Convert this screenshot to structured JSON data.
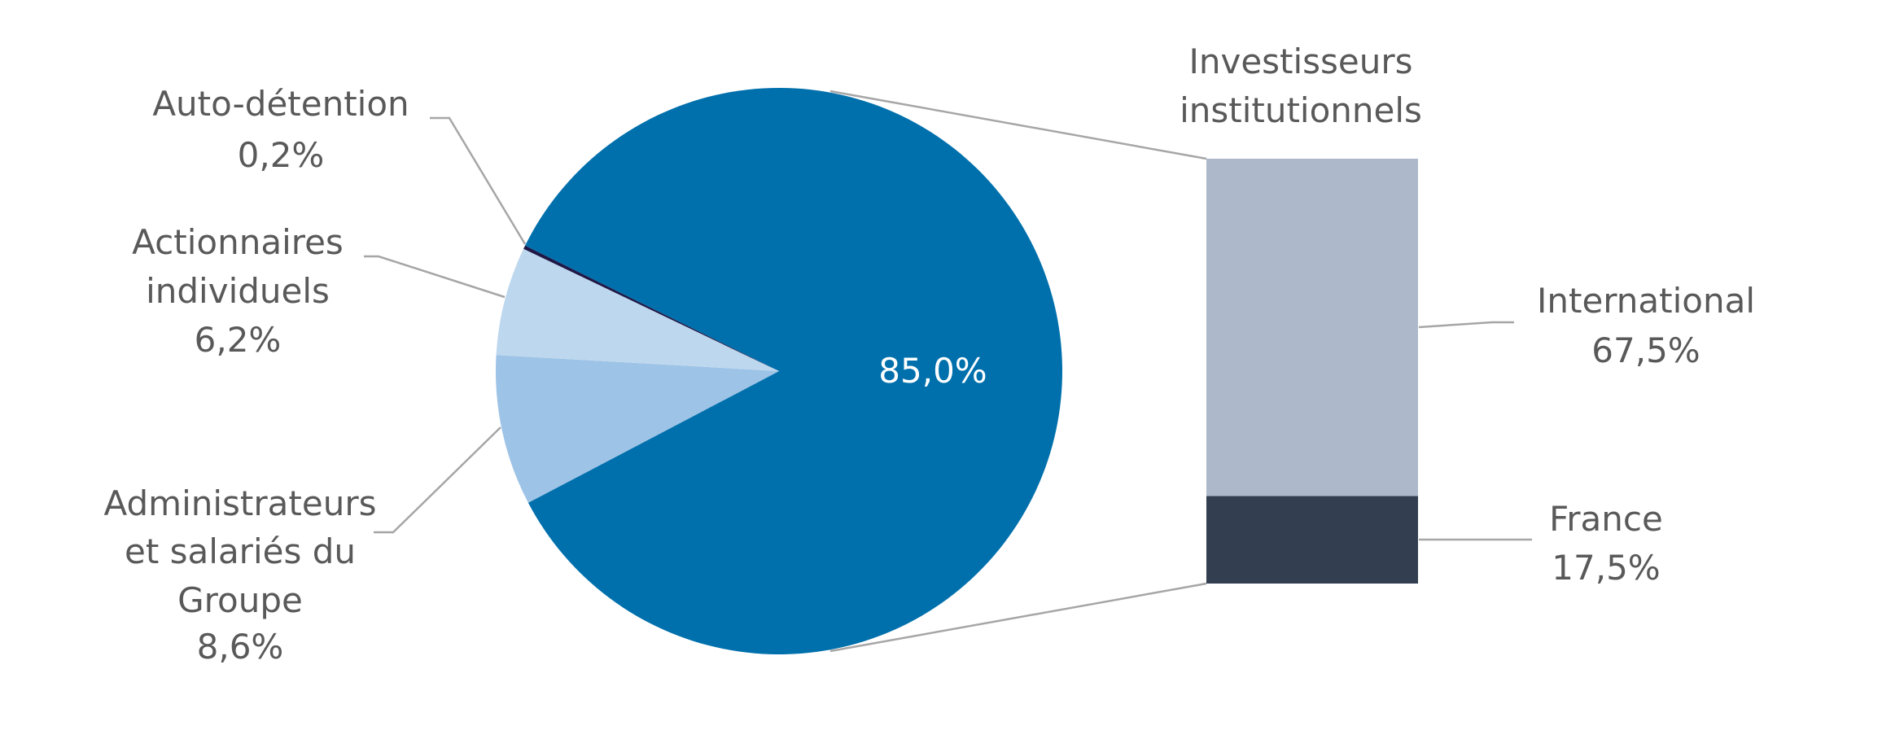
{
  "chart_data": [
    {
      "type": "pie",
      "slices": [
        {
          "label": [
            "Investisseurs",
            "institutionnels"
          ],
          "value": 85.0,
          "value_label": "85,0%",
          "color": "#0070AC"
        },
        {
          "label": [
            "Administrateurs",
            "et salariés du",
            "Groupe"
          ],
          "value": 8.6,
          "value_label": "8,6%",
          "color": "#9DC3E6"
        },
        {
          "label": [
            "Actionnaires",
            "individuels"
          ],
          "value": 6.2,
          "value_label": "6,2%",
          "color": "#BDD7EE"
        },
        {
          "label": [
            "Auto-détention"
          ],
          "value": 0.2,
          "value_label": "0,2%",
          "color": "#1F1847"
        }
      ]
    },
    {
      "type": "bar",
      "stacked": true,
      "title": [
        "Investisseurs",
        "institutionnels"
      ],
      "segments": [
        {
          "label": "International",
          "value": 67.5,
          "value_label": "67,5%",
          "color": "#ADB9CA"
        },
        {
          "label": "France",
          "value": 17.5,
          "value_label": "17,5%",
          "color": "#333F50"
        }
      ]
    }
  ]
}
